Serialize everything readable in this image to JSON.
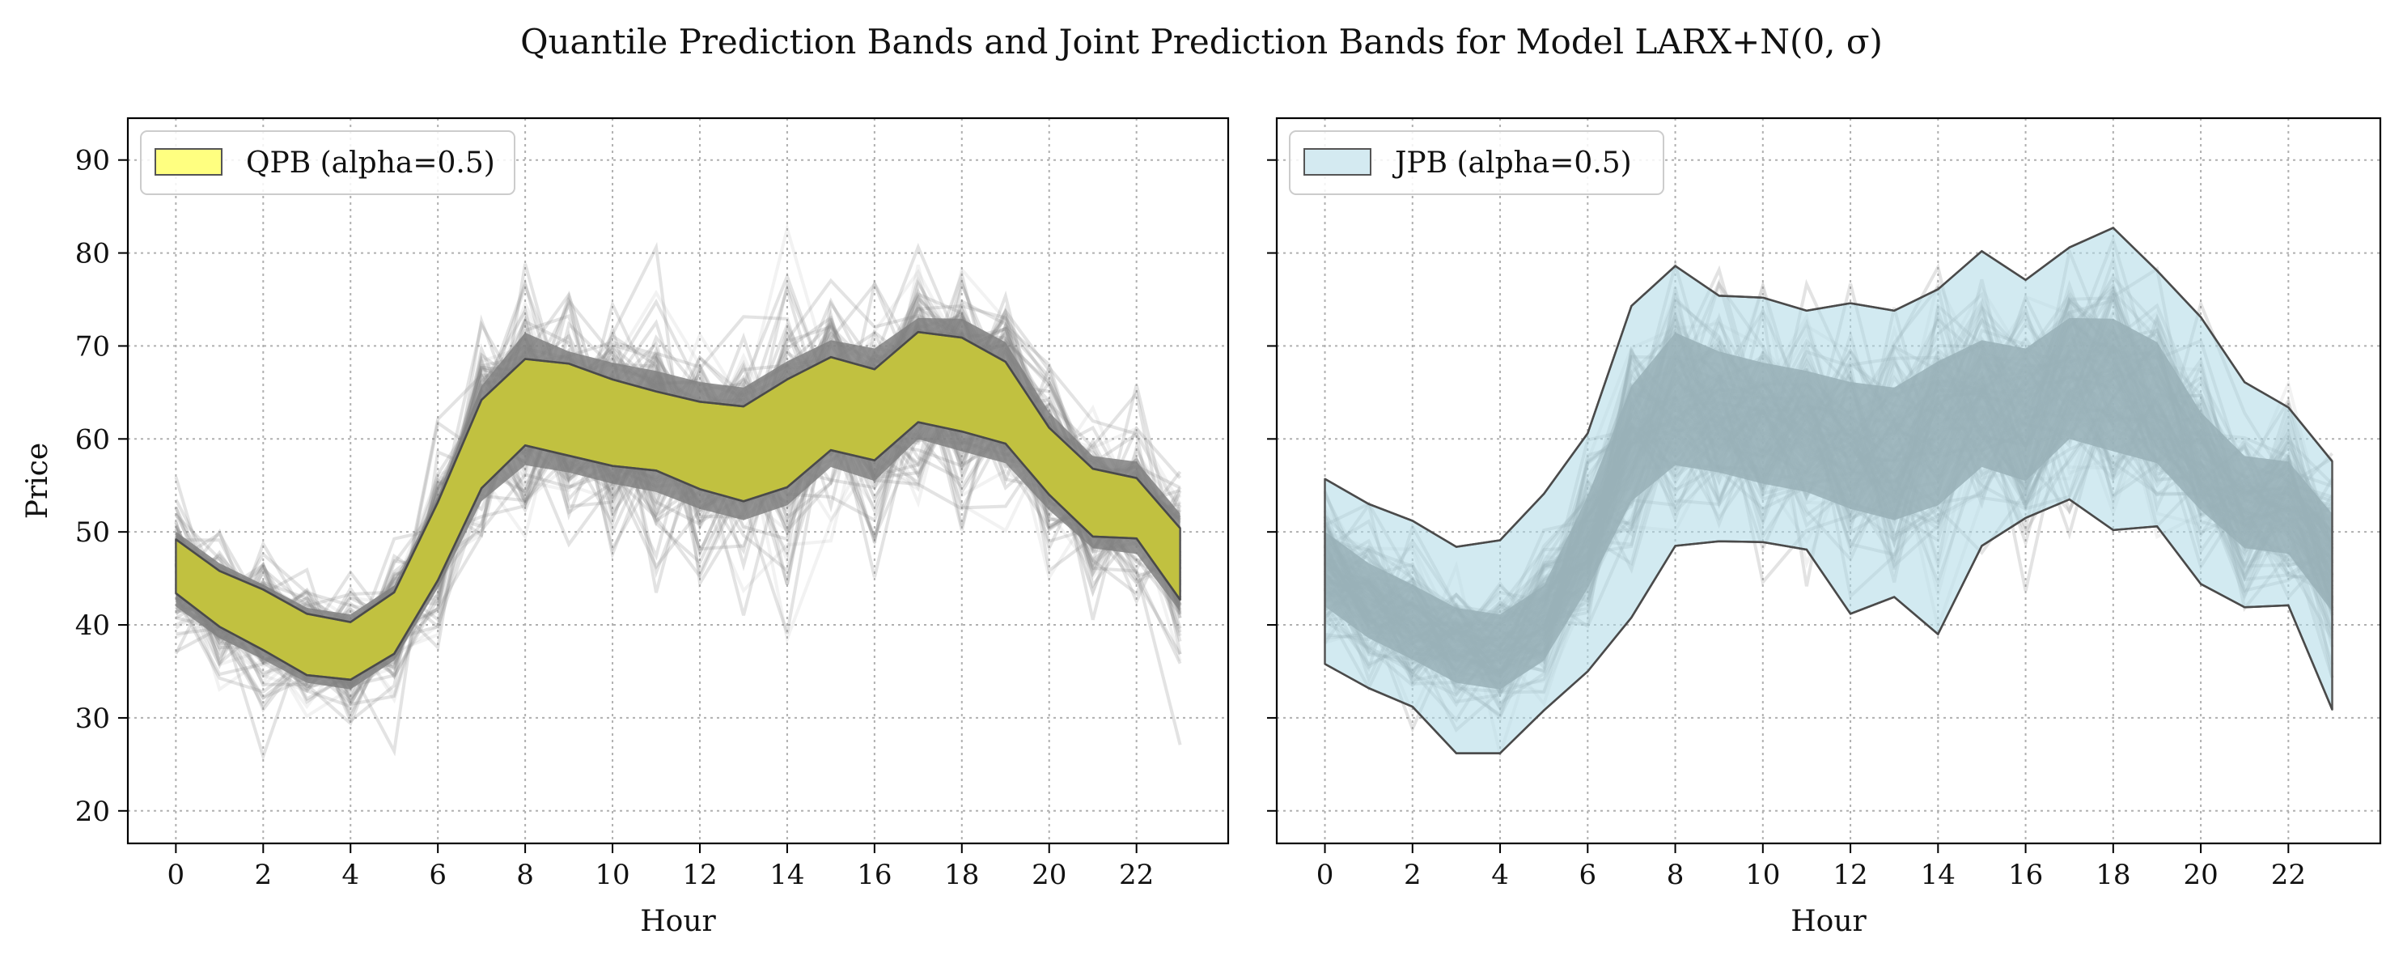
{
  "figure": {
    "title": "Quantile Prediction Bands and Joint Prediction Bands for Model LARX+N(0, σ)"
  },
  "chart_data": [
    {
      "type": "area",
      "panel": "left",
      "xlabel": "Hour",
      "ylabel": "Price",
      "xlim": [
        -1.1,
        24.1
      ],
      "ylim": [
        16.5,
        94.5
      ],
      "xticks": [
        "0",
        "2",
        "4",
        "6",
        "8",
        "10",
        "12",
        "14",
        "16",
        "18",
        "20",
        "22"
      ],
      "yticks": [
        "20",
        "30",
        "40",
        "50",
        "60",
        "70",
        "80",
        "90"
      ],
      "grid": true,
      "legend_position": "upper-left",
      "legend": "QPB (alpha=0.5)",
      "band_color": "#c1c140",
      "legend_swatch_color": "#ffff80",
      "x": [
        0,
        1,
        2,
        3,
        4,
        5,
        6,
        7,
        8,
        9,
        10,
        11,
        12,
        13,
        14,
        15,
        16,
        17,
        18,
        19,
        20,
        21,
        22,
        23
      ],
      "band_upper": [
        49.2,
        45.8,
        43.8,
        41.2,
        40.3,
        43.5,
        53.2,
        64.2,
        68.6,
        68.1,
        66.4,
        65.1,
        64.0,
        63.5,
        66.4,
        68.8,
        67.5,
        71.5,
        70.9,
        68.3,
        61.2,
        56.8,
        55.8,
        50.4
      ],
      "band_lower": [
        43.4,
        39.8,
        37.3,
        34.6,
        34.1,
        36.9,
        44.8,
        54.7,
        59.3,
        58.2,
        57.1,
        56.6,
        54.6,
        53.3,
        54.8,
        58.8,
        57.7,
        61.8,
        60.8,
        59.5,
        54.0,
        49.5,
        49.3,
        42.7
      ],
      "sample_paths_mean": [
        46.0,
        42.6,
        40.3,
        37.8,
        37.1,
        40.2,
        48.9,
        59.5,
        64.3,
        62.9,
        61.7,
        60.8,
        59.3,
        58.4,
        60.6,
        63.8,
        62.6,
        66.5,
        65.8,
        63.9,
        57.6,
        53.2,
        52.6,
        46.7
      ],
      "sample_paths_spread": [
        6.5,
        6.5,
        6.5,
        6.5,
        6.5,
        6.5,
        8.0,
        10.0,
        11.5,
        10.5,
        10.5,
        10.5,
        11.0,
        11.5,
        12.5,
        11.0,
        11.5,
        10.5,
        11.5,
        10.5,
        8.5,
        8.0,
        8.0,
        8.5
      ],
      "sample_paths_color": "#808080"
    },
    {
      "type": "area",
      "panel": "right",
      "xlabel": "Hour",
      "ylabel": "",
      "xlim": [
        -1.1,
        24.1
      ],
      "ylim": [
        16.5,
        94.5
      ],
      "xticks": [
        "0",
        "2",
        "4",
        "6",
        "8",
        "10",
        "12",
        "14",
        "16",
        "18",
        "20",
        "22"
      ],
      "yticks": [
        "20",
        "30",
        "40",
        "50",
        "60",
        "70",
        "80",
        "90"
      ],
      "grid": true,
      "legend_position": "upper-left",
      "legend": "JPB (alpha=0.5)",
      "band_color": "#add8e6",
      "legend_swatch_color": "#d4eaf1",
      "x": [
        0,
        1,
        2,
        3,
        4,
        5,
        6,
        7,
        8,
        9,
        10,
        11,
        12,
        13,
        14,
        15,
        16,
        17,
        18,
        19,
        20,
        21,
        22,
        23
      ],
      "band_upper": [
        55.7,
        53.0,
        51.2,
        48.4,
        49.1,
        54.1,
        60.6,
        74.3,
        78.6,
        75.4,
        75.2,
        73.8,
        74.6,
        73.8,
        76.1,
        80.2,
        77.1,
        80.6,
        82.7,
        78.1,
        73.1,
        66.1,
        63.4,
        57.6
      ],
      "band_lower": [
        35.8,
        33.2,
        31.2,
        26.2,
        26.2,
        30.8,
        35.0,
        40.8,
        48.5,
        49.0,
        48.9,
        48.1,
        41.2,
        43.0,
        39.0,
        48.5,
        51.5,
        53.5,
        50.2,
        50.6,
        44.4,
        41.9,
        42.1,
        30.9
      ],
      "sample_paths_mean": [
        46.0,
        42.6,
        40.3,
        37.8,
        37.1,
        40.2,
        48.9,
        59.5,
        64.3,
        62.9,
        61.7,
        60.8,
        59.3,
        58.4,
        60.6,
        63.8,
        62.6,
        66.5,
        65.8,
        63.9,
        57.6,
        53.2,
        52.6,
        46.7
      ],
      "sample_paths_spread": [
        6.5,
        6.5,
        6.5,
        6.5,
        6.5,
        6.5,
        8.0,
        10.0,
        11.5,
        10.5,
        10.5,
        10.5,
        11.0,
        11.5,
        12.5,
        11.0,
        11.5,
        10.5,
        11.5,
        10.5,
        8.5,
        8.0,
        8.0,
        8.5
      ],
      "sample_paths_color": "#808080"
    }
  ]
}
